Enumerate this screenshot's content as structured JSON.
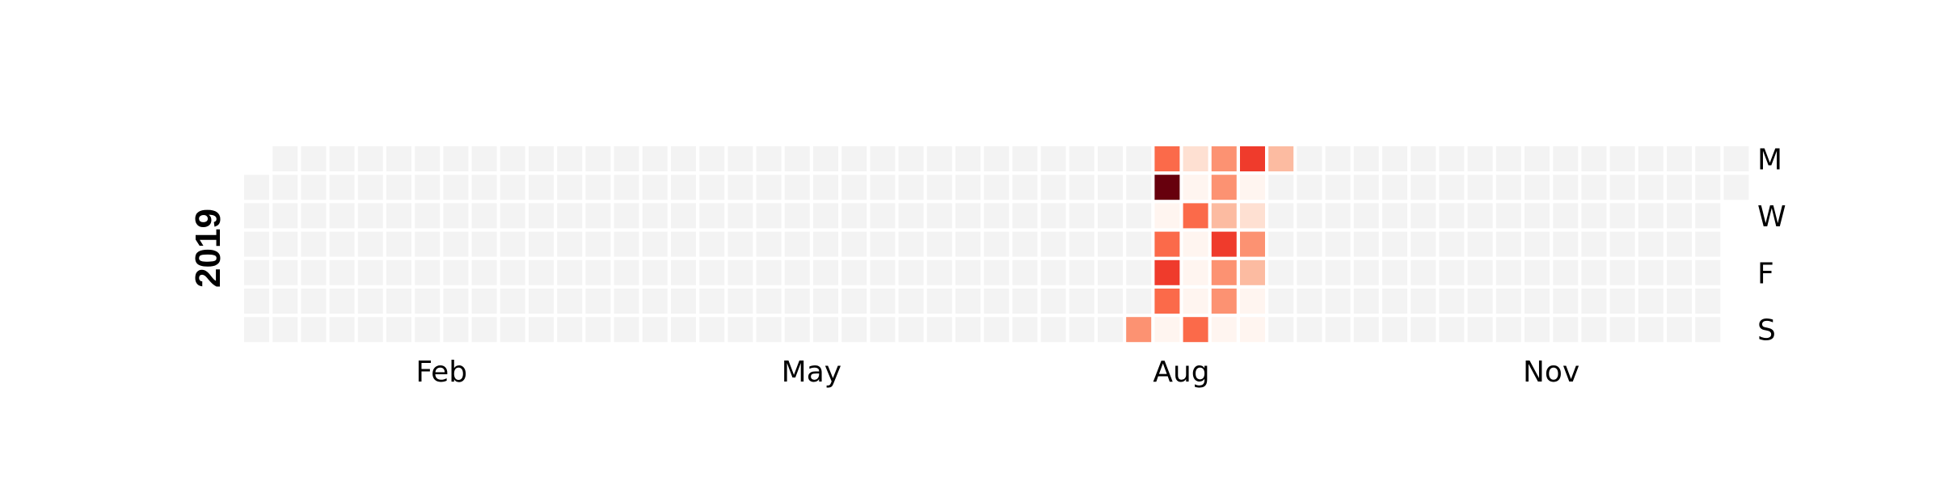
{
  "chart_data": {
    "type": "heatmap",
    "layout": "calendar",
    "year": "2019",
    "weekday_labels": [
      "M",
      "W",
      "F",
      "S"
    ],
    "weekday_label_rows": [
      0,
      2,
      4,
      6
    ],
    "month_labels": [
      "Feb",
      "May",
      "Aug",
      "Nov"
    ],
    "month_label_weeks": [
      6.5,
      19.5,
      32.5,
      45.5
    ],
    "num_weeks": 53,
    "first_week_start_row": 1,
    "last_week_end_row": 1,
    "colors": {
      "empty": "#f3f3f3",
      "scale": [
        "#fff5f0",
        "#fee0d2",
        "#fcbba1",
        "#fc9272",
        "#fb6a4a",
        "#ef3b2c",
        "#cb181d",
        "#67000d"
      ]
    },
    "cells": [
      {
        "week": 32,
        "day": 0,
        "level": 4
      },
      {
        "week": 33,
        "day": 0,
        "level": 1
      },
      {
        "week": 34,
        "day": 0,
        "level": 3
      },
      {
        "week": 35,
        "day": 0,
        "level": 5
      },
      {
        "week": 36,
        "day": 0,
        "level": 2
      },
      {
        "week": 32,
        "day": 1,
        "level": 7
      },
      {
        "week": 33,
        "day": 1,
        "level": 0
      },
      {
        "week": 34,
        "day": 1,
        "level": 3
      },
      {
        "week": 35,
        "day": 1,
        "level": 0
      },
      {
        "week": 32,
        "day": 2,
        "level": 0
      },
      {
        "week": 33,
        "day": 2,
        "level": 4
      },
      {
        "week": 34,
        "day": 2,
        "level": 2
      },
      {
        "week": 35,
        "day": 2,
        "level": 1
      },
      {
        "week": 32,
        "day": 3,
        "level": 4
      },
      {
        "week": 33,
        "day": 3,
        "level": 0
      },
      {
        "week": 34,
        "day": 3,
        "level": 5
      },
      {
        "week": 35,
        "day": 3,
        "level": 3
      },
      {
        "week": 32,
        "day": 4,
        "level": 5
      },
      {
        "week": 33,
        "day": 4,
        "level": 0
      },
      {
        "week": 34,
        "day": 4,
        "level": 3
      },
      {
        "week": 35,
        "day": 4,
        "level": 2
      },
      {
        "week": 32,
        "day": 5,
        "level": 4
      },
      {
        "week": 33,
        "day": 5,
        "level": 0
      },
      {
        "week": 34,
        "day": 5,
        "level": 3
      },
      {
        "week": 35,
        "day": 5,
        "level": 0
      },
      {
        "week": 31,
        "day": 6,
        "level": 3
      },
      {
        "week": 32,
        "day": 6,
        "level": 0
      },
      {
        "week": 33,
        "day": 6,
        "level": 4
      },
      {
        "week": 34,
        "day": 6,
        "level": 0
      },
      {
        "week": 35,
        "day": 6,
        "level": 0
      }
    ]
  }
}
